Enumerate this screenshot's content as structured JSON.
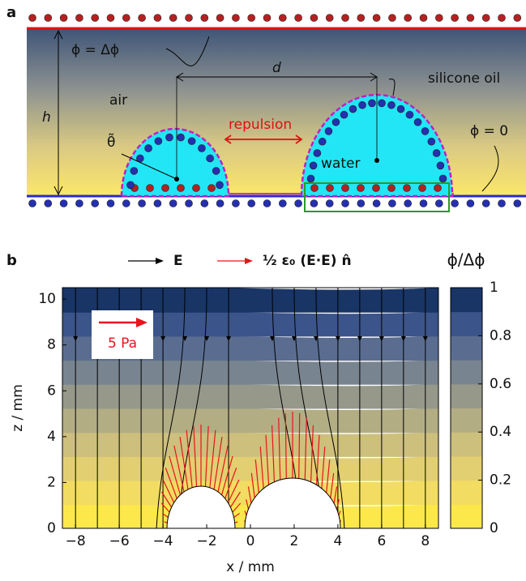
{
  "panel_a": {
    "label": "a",
    "top_potential": "ϕ = Δϕ",
    "distance": "d",
    "oil": "silicone oil",
    "air": "air",
    "height": "h",
    "repulsion": "repulsion",
    "angle": "θ̃",
    "water": "water",
    "bottom_potential": "ϕ = 0"
  },
  "panel_b_label": "b",
  "chart_data": {
    "type": "contour",
    "xlabel": "x / mm",
    "ylabel": "z / mm",
    "xlim": [
      -8.6,
      8.6
    ],
    "xticks": [
      {
        "value": -8,
        "label": "−8"
      },
      {
        "value": -6,
        "label": "−6"
      },
      {
        "value": -4,
        "label": "−4"
      },
      {
        "value": -2,
        "label": "−2"
      },
      0,
      2,
      4,
      6,
      8
    ],
    "ylim": [
      0,
      10.5
    ],
    "yticks": [
      0,
      2,
      4,
      6,
      8,
      10
    ],
    "legend": [
      {
        "label": "E",
        "color": "#000000"
      },
      {
        "label": "½ ε₀ (E·E) n̂",
        "color": "#e8141b"
      }
    ],
    "annotation": "5 Pa",
    "colorbar": {
      "title": "ϕ/Δϕ",
      "lim": [
        0,
        1
      ],
      "ticks": [
        0,
        0.2,
        0.4,
        0.6,
        0.8,
        1
      ],
      "colors": [
        "#fde84b",
        "#f2dc62",
        "#e2cf72",
        "#cdbf7c",
        "#b3ad84",
        "#96998a",
        "#78848f",
        "#5a6d91",
        "#3b548a",
        "#183566"
      ]
    }
  }
}
